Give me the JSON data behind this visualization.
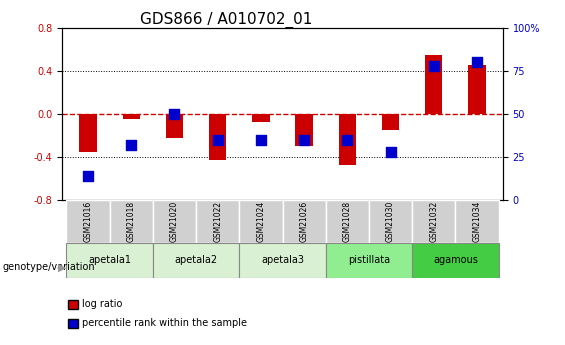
{
  "title": "GDS866 / A010702_01",
  "samples": [
    "GSM21016",
    "GSM21018",
    "GSM21020",
    "GSM21022",
    "GSM21024",
    "GSM21026",
    "GSM21028",
    "GSM21030",
    "GSM21032",
    "GSM21034"
  ],
  "log_ratio": [
    -0.35,
    -0.05,
    -0.22,
    -0.43,
    -0.08,
    -0.3,
    -0.47,
    -0.15,
    0.55,
    0.45
  ],
  "percentile_rank": [
    14,
    32,
    50,
    35,
    35,
    35,
    35,
    28,
    78,
    80
  ],
  "ylim": [
    -0.8,
    0.8
  ],
  "yticks_left": [
    -0.8,
    -0.4,
    0.0,
    0.4,
    0.8
  ],
  "yticks_right": [
    0,
    25,
    50,
    75,
    100
  ],
  "bar_color": "#cc0000",
  "dot_color": "#0000cc",
  "zero_line_color": "#cc0000",
  "grid_color": "#000000",
  "groups": [
    {
      "name": "apetala1",
      "samples": [
        0,
        1
      ],
      "color": "#d9f0d3"
    },
    {
      "name": "apetala2",
      "samples": [
        2,
        3
      ],
      "color": "#d9f0d3"
    },
    {
      "name": "apetala3",
      "samples": [
        4,
        5
      ],
      "color": "#d9f0d3"
    },
    {
      "name": "pistillata",
      "samples": [
        6,
        7
      ],
      "color": "#90ee90"
    },
    {
      "name": "agamous",
      "samples": [
        8,
        9
      ],
      "color": "#44cc44"
    }
  ],
  "genotype_label": "genotype/variation",
  "legend_items": [
    {
      "label": "log ratio",
      "color": "#cc0000"
    },
    {
      "label": "percentile rank within the sample",
      "color": "#0000cc"
    }
  ],
  "title_fontsize": 11,
  "tick_fontsize": 7,
  "sample_fontsize": 5.5,
  "group_fontsize": 7,
  "legend_fontsize": 7,
  "bar_width": 0.4,
  "dot_size": 55
}
